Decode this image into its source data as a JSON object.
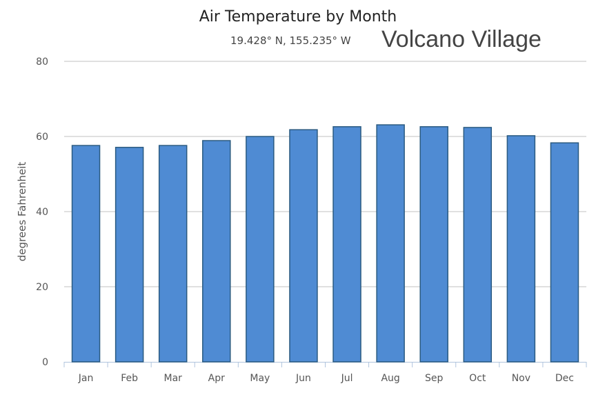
{
  "chart_data": {
    "type": "bar",
    "title": "Air Temperature by Month",
    "subtitle": "19.428° N, 155.235° W",
    "annotation": "Volcano Village",
    "xlabel": "",
    "ylabel": "degrees Fahrenheit",
    "ylim": [
      0,
      80
    ],
    "yticks": [
      0,
      20,
      40,
      60,
      80
    ],
    "grid": true,
    "categories": [
      "Jan",
      "Feb",
      "Mar",
      "Apr",
      "May",
      "Jun",
      "Jul",
      "Aug",
      "Sep",
      "Oct",
      "Nov",
      "Dec"
    ],
    "values": [
      57.6,
      57.1,
      57.6,
      58.9,
      60.0,
      61.8,
      62.6,
      63.1,
      62.6,
      62.4,
      60.2,
      58.3
    ],
    "bar_color": "#4f8bd3",
    "bar_edge": "#2a5a80"
  }
}
